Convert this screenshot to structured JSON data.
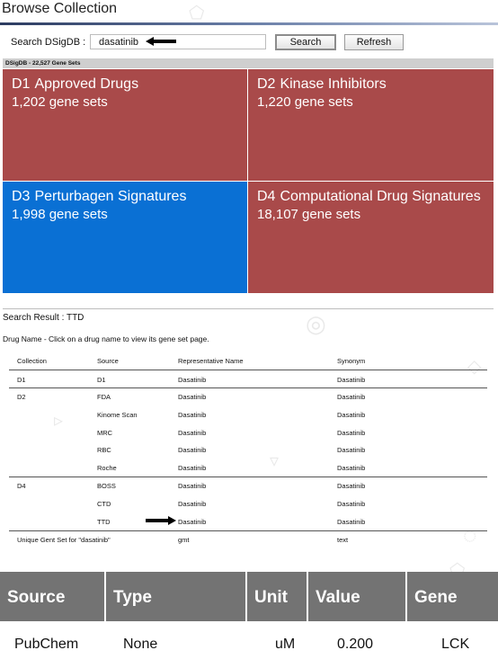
{
  "title": "Browse Collection",
  "search": {
    "label": "Search DSigDB :",
    "value": "dasatinib",
    "search_button": "Search",
    "refresh_button": "Refresh"
  },
  "db_bar": "DSigDB - 22,527 Gene Sets",
  "tiles": [
    {
      "code": "D1",
      "name": "Approved Drugs",
      "count": "1,202 gene sets",
      "color": "#a94a4a"
    },
    {
      "code": "D2",
      "name": "Kinase Inhibitors",
      "count": "1,220 gene sets",
      "color": "#a94a4a"
    },
    {
      "code": "D3",
      "name": "Perturbagen Signatures",
      "count": "1,998 gene sets",
      "color": "#0a70d4"
    },
    {
      "code": "D4",
      "name": "Computational Drug Signatures",
      "count": "18,107 gene sets",
      "color": "#a94a4a"
    }
  ],
  "result": {
    "title": "Search Result : TTD",
    "instruction": "Drug Name - Click on a drug name to view its gene set page.",
    "columns": [
      "Collection",
      "Source",
      "Representative Name",
      "Synonym"
    ],
    "rows": [
      {
        "collection": "D1",
        "source": "D1",
        "name": "Dasatinib",
        "synonym": "Dasatinib"
      },
      {
        "collection": "D2",
        "source": "FDA",
        "name": "Dasatinib",
        "synonym": "Dasatinib"
      },
      {
        "collection": "",
        "source": "Kinome Scan",
        "name": "Dasatinib",
        "synonym": "Dasatinib"
      },
      {
        "collection": "",
        "source": "MRC",
        "name": "Dasatinib",
        "synonym": "Dasatinib"
      },
      {
        "collection": "",
        "source": "RBC",
        "name": "Dasatinib",
        "synonym": "Dasatinib"
      },
      {
        "collection": "",
        "source": "Roche",
        "name": "Dasatinib",
        "synonym": "Dasatinib"
      },
      {
        "collection": "D4",
        "source": "BOSS",
        "name": "Dasatinib",
        "synonym": "Dasatinib"
      },
      {
        "collection": "",
        "source": "CTD",
        "name": "Dasatinib",
        "synonym": "Dasatinib"
      },
      {
        "collection": "",
        "source": "TTD",
        "name": "Dasatinib",
        "synonym": "Dasatinib"
      }
    ],
    "unique_label": "Unique Gent Set for \"dasatinib\"",
    "unique_gmt": "gmt",
    "unique_text": "text"
  },
  "bottom_table": {
    "columns": [
      "Source",
      "Type",
      "Unit",
      "Value",
      "Gene"
    ],
    "row": {
      "source": "PubChem",
      "type": "None",
      "unit": "uM",
      "value": "0.200",
      "gene": "LCK"
    }
  },
  "icons": {
    "arrow": "arrow-left-icon",
    "row_arrow": "arrow-right-icon"
  }
}
